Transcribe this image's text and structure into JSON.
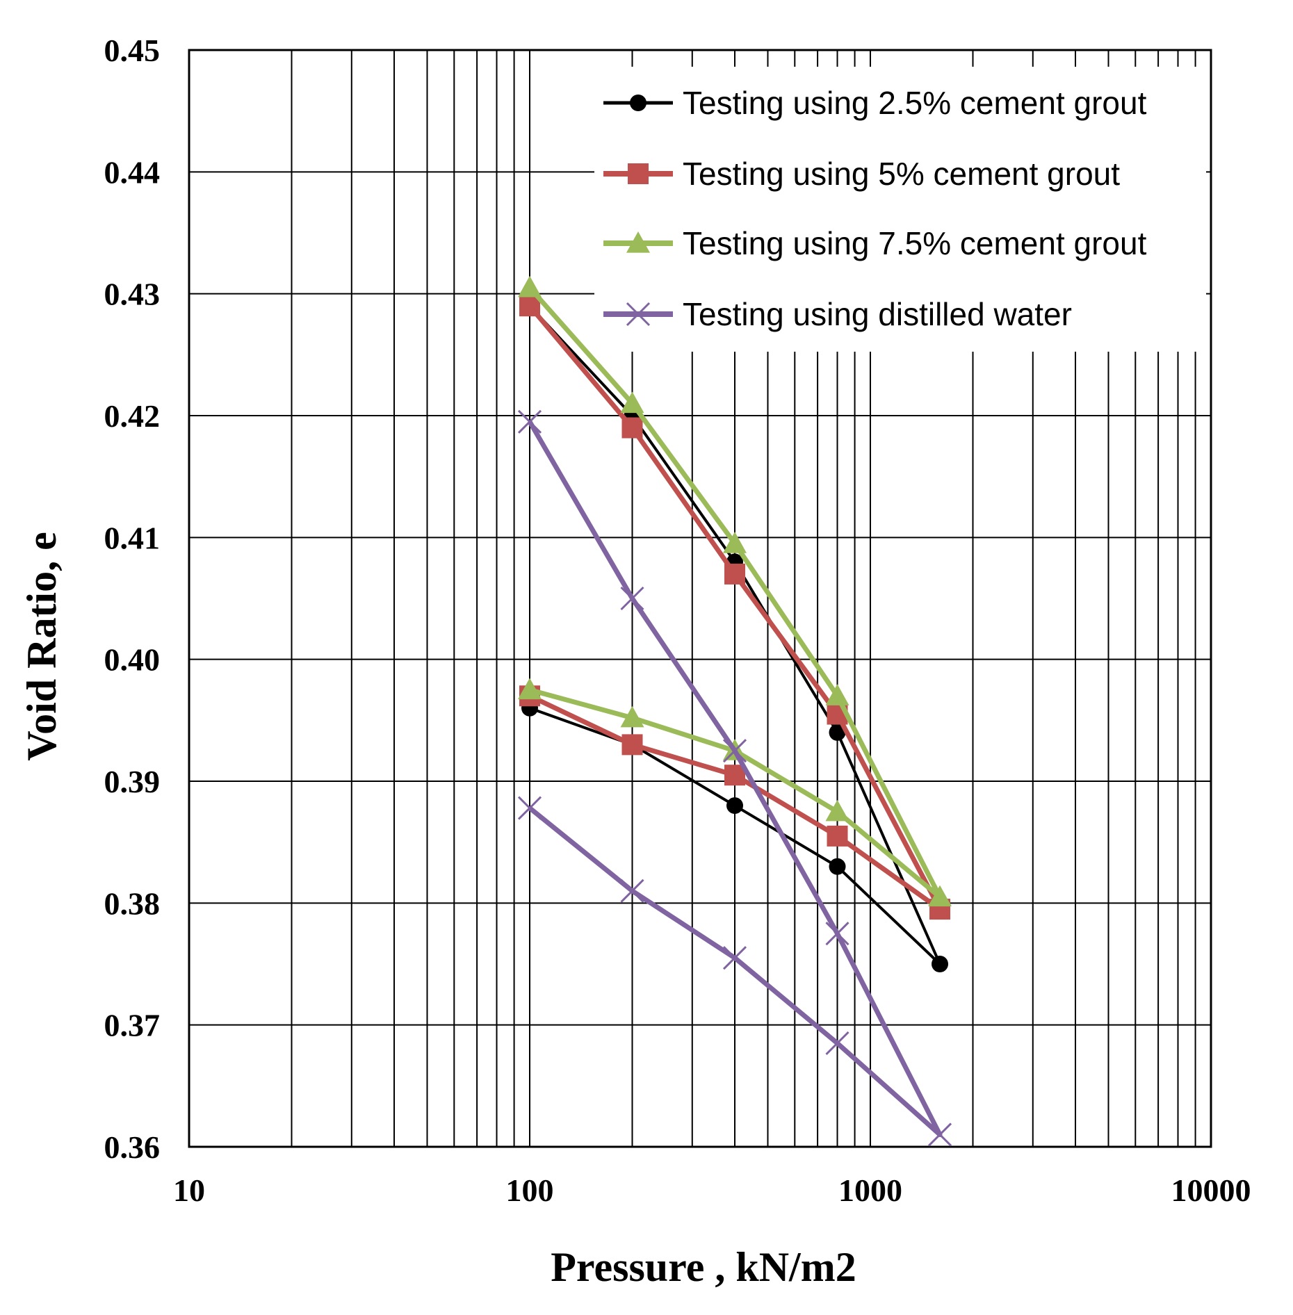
{
  "chart_data": {
    "type": "line",
    "title": "",
    "xlabel": "Pressure , kN/m2",
    "ylabel": "Void Ratio, e",
    "xscale": "log",
    "xlim": [
      10,
      10000
    ],
    "ylim": [
      0.36,
      0.45
    ],
    "x_tick_labels": [
      "10",
      "100",
      "1000",
      "10000"
    ],
    "y_tick_labels": [
      "0.36",
      "0.37",
      "0.38",
      "0.39",
      "0.40",
      "0.41",
      "0.42",
      "0.43",
      "0.44",
      "0.45"
    ],
    "grid": true,
    "legend_position": "top-right",
    "series": [
      {
        "name": "Testing using 2.5% cement grout",
        "color": "#000000",
        "marker": "circle",
        "points": [
          [
            100,
            0.429
          ],
          [
            200,
            0.42
          ],
          [
            400,
            0.408
          ],
          [
            800,
            0.394
          ],
          [
            1600,
            0.375
          ],
          [
            800,
            0.383
          ],
          [
            400,
            0.388
          ],
          [
            200,
            0.393
          ],
          [
            100,
            0.396
          ]
        ]
      },
      {
        "name": "Testing using 5% cement grout",
        "color": "#c0504d",
        "marker": "square",
        "points": [
          [
            100,
            0.429
          ],
          [
            200,
            0.419
          ],
          [
            400,
            0.407
          ],
          [
            800,
            0.3955
          ],
          [
            1600,
            0.3795
          ],
          [
            800,
            0.3855
          ],
          [
            400,
            0.3905
          ],
          [
            200,
            0.393
          ],
          [
            100,
            0.397
          ]
        ]
      },
      {
        "name": "Testing using 7.5% cement grout",
        "color": "#9bbb59",
        "marker": "triangle",
        "points": [
          [
            100,
            0.4305
          ],
          [
            200,
            0.421
          ],
          [
            400,
            0.4095
          ],
          [
            800,
            0.397
          ],
          [
            1600,
            0.3805
          ],
          [
            800,
            0.3875
          ],
          [
            400,
            0.3925
          ],
          [
            200,
            0.3952
          ],
          [
            100,
            0.3975
          ]
        ]
      },
      {
        "name": "Testing using distilled water",
        "color": "#8064a2",
        "marker": "x",
        "points": [
          [
            100,
            0.4195
          ],
          [
            200,
            0.405
          ],
          [
            400,
            0.3925
          ],
          [
            800,
            0.3775
          ],
          [
            1600,
            0.361
          ],
          [
            800,
            0.3685
          ],
          [
            400,
            0.3755
          ],
          [
            200,
            0.381
          ],
          [
            100,
            0.3878
          ]
        ]
      }
    ]
  }
}
